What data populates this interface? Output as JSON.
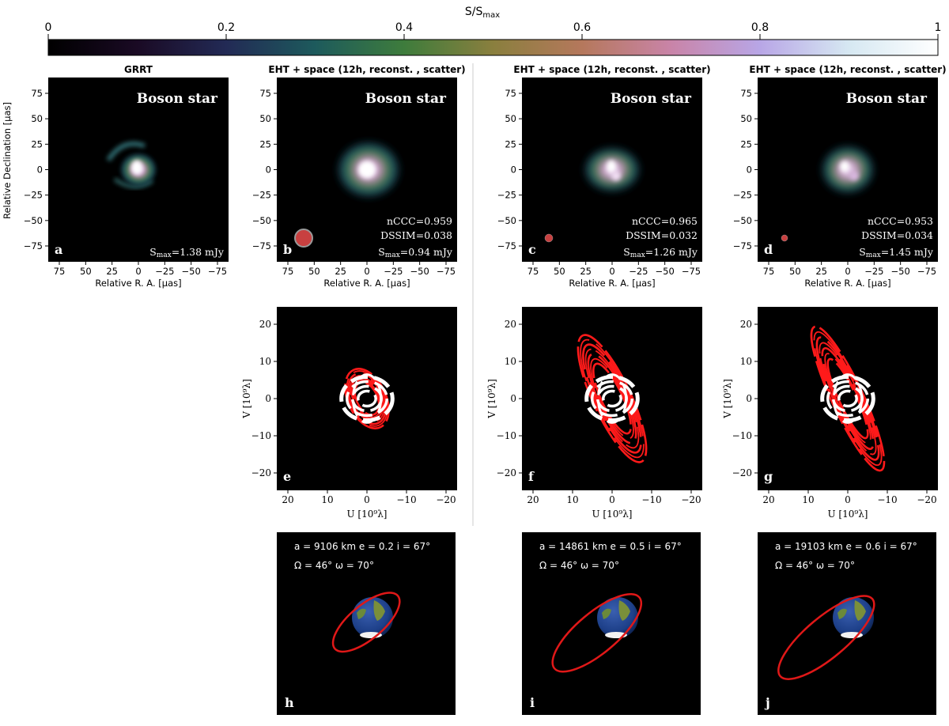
{
  "colorbar": {
    "label": "S/S",
    "label_sub": "max",
    "ticks": [
      "0",
      "0.2",
      "0.4",
      "0.6",
      "0.8",
      "1"
    ],
    "stops": [
      "#000000",
      "#1a0a24",
      "#222a55",
      "#1d5a5c",
      "#3e7c3c",
      "#8a7f3e",
      "#b5785c",
      "#c984a8",
      "#b8a6e6",
      "#d6e8f2",
      "#ffffff"
    ]
  },
  "image_panels": [
    {
      "title": "GRRT",
      "source": "Boson star",
      "letter": "a",
      "metrics": [],
      "smax": "=1.38 mJy",
      "beam_r": 0
    },
    {
      "title": "EHT + space (12h, reconst. , scatter)",
      "source": "Boson star",
      "letter": "b",
      "metrics": [
        "nCCC=0.959",
        "DSSIM=0.038"
      ],
      "smax": "=0.94 mJy",
      "beam_r": 11
    },
    {
      "title": "EHT + space (12h, reconst. , scatter)",
      "source": "Boson star",
      "letter": "c",
      "metrics": [
        "nCCC=0.965",
        "DSSIM=0.032"
      ],
      "smax": "=1.26 mJy",
      "beam_r": 5
    },
    {
      "title": "EHT + space (12h, reconst. , scatter)",
      "source": "Boson star",
      "letter": "d",
      "metrics": [
        "nCCC=0.953",
        "DSSIM=0.034"
      ],
      "smax": "=1.45 mJy",
      "beam_r": 4
    }
  ],
  "image_axes": {
    "xlabel": "Relative R. A. [μas]",
    "ylabel": "Relative Declination [μas]",
    "xticks": [
      "75",
      "50",
      "25",
      "0",
      "−25",
      "−50",
      "−75"
    ],
    "yticks": [
      "75",
      "50",
      "25",
      "0",
      "−25",
      "−50",
      "−75"
    ],
    "smax_prefix": "S",
    "smax_sub": "max"
  },
  "uv_panels": [
    {
      "letter": "e",
      "ground_extent": 8,
      "space_semi_major": 10,
      "space_semi_minor": 6
    },
    {
      "letter": "f",
      "ground_extent": 8,
      "space_semi_major": 22,
      "space_semi_minor": 6
    },
    {
      "letter": "g",
      "ground_extent": 8,
      "space_semi_major": 25,
      "space_semi_minor": 5
    }
  ],
  "uv_axes": {
    "xlabel": "U [10⁹λ]",
    "ylabel": "V [10⁹λ]",
    "xticks": [
      "20",
      "10",
      "0",
      "−10",
      "−20"
    ],
    "yticks": [
      "20",
      "10",
      "0",
      "−10",
      "−20"
    ]
  },
  "orbit_panels": [
    {
      "letter": "h",
      "line1": "a = 9106 km e = 0.2 i = 67°",
      "line2": "Ω = 46° ω = 70°"
    },
    {
      "letter": "i",
      "line1": "a = 14861 km e = 0.5 i = 67°",
      "line2": "Ω = 46° ω = 70°"
    },
    {
      "letter": "j",
      "line1": "a = 19103 km e = 0.6 i = 67°",
      "line2": "Ω = 46° ω = 70°"
    }
  ],
  "colors": {
    "panel_bg": "#000000",
    "space_track": "#ff1a1a",
    "ground_track": "#ffffff",
    "beam": "#c84040",
    "orbit": "#e01818"
  }
}
